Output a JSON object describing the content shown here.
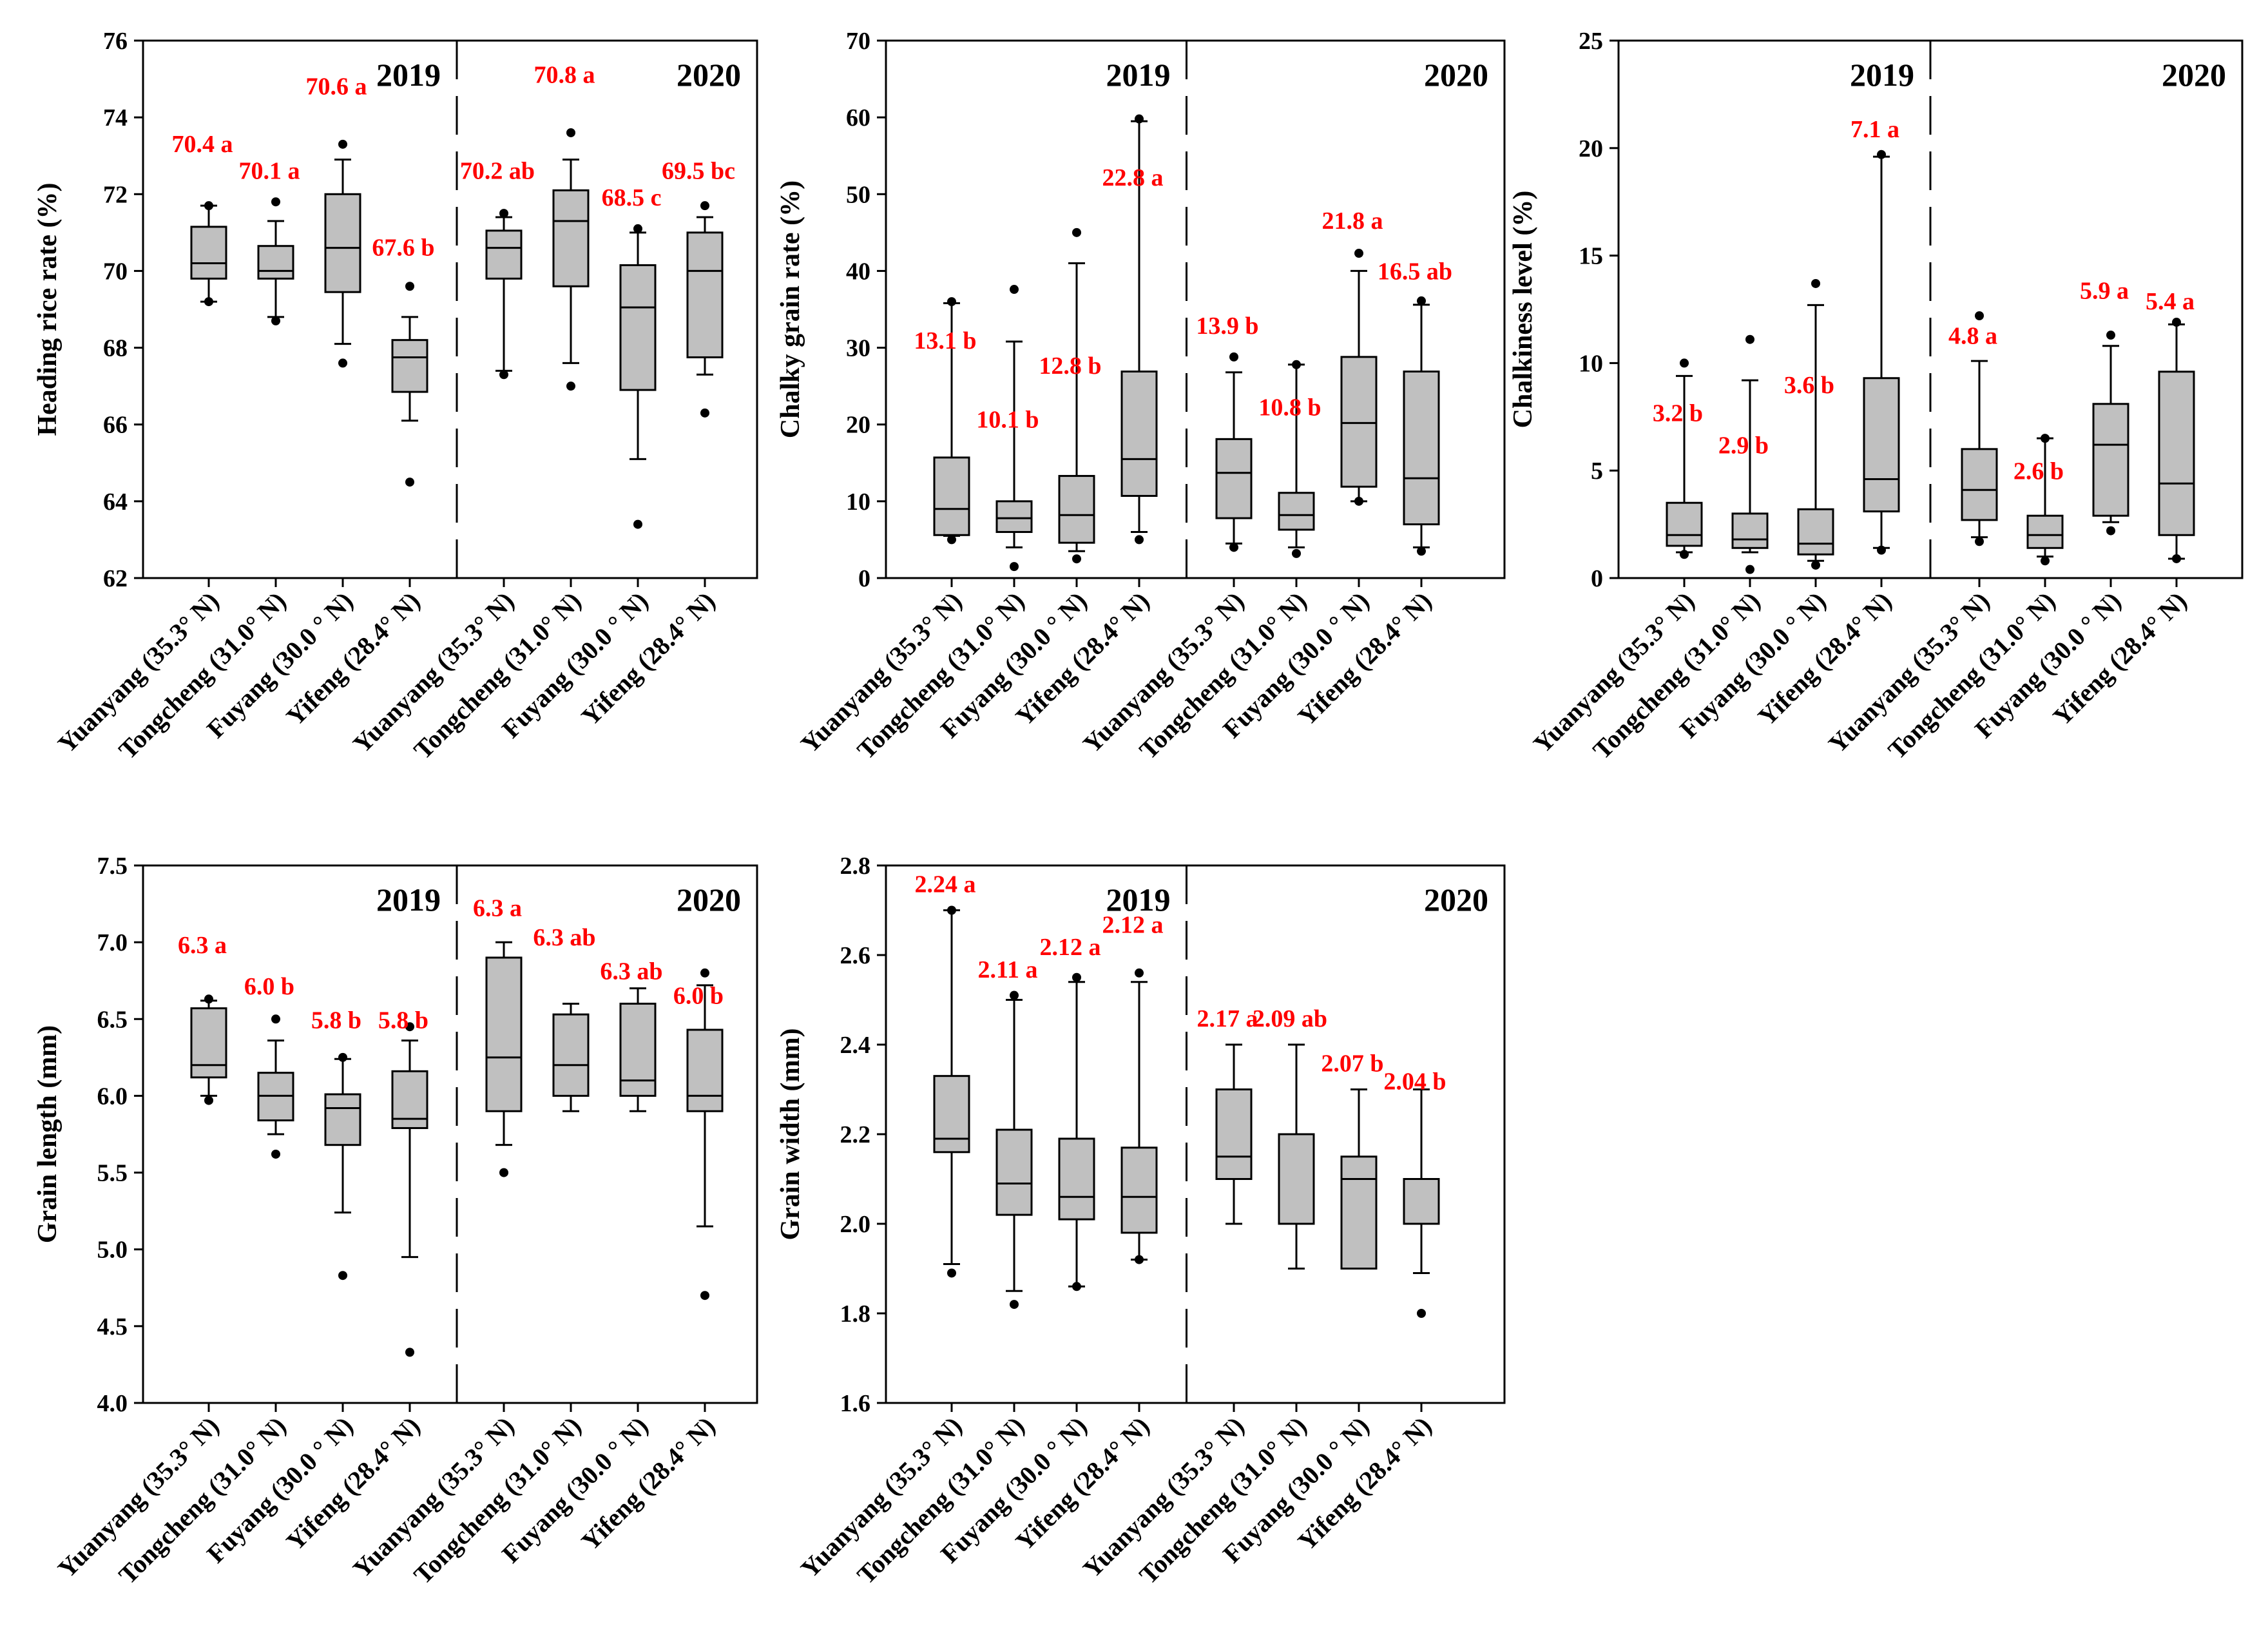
{
  "chart_data": [
    {
      "type": "box",
      "ylabel": "Heading rice rate (%)",
      "ylim": [
        62,
        76
      ],
      "yticks": [
        62,
        64,
        66,
        68,
        70,
        72,
        74,
        76
      ],
      "year_labels": [
        "2019",
        "2020"
      ],
      "categories": [
        "Yuanyang (35.3° N)",
        "Tongcheng (31.0° N)",
        "Fuyang (30.0 ° N)",
        "Yifeng (28.4° N)",
        "Yuanyang (35.3° N)",
        "Tongcheng (31.0° N)",
        "Fuyang (30.0 ° N)",
        "Yifeng (28.4° N)"
      ],
      "boxes": [
        {
          "wlo": 69.2,
          "q1": 69.8,
          "med": 70.2,
          "q3": 71.15,
          "whi": 71.7,
          "outliers": [
            69.2,
            71.7
          ],
          "label": "70.4 a",
          "label_y": 73.1
        },
        {
          "wlo": 68.8,
          "q1": 69.8,
          "med": 70.0,
          "q3": 70.65,
          "whi": 71.3,
          "outliers": [
            68.7,
            71.8
          ],
          "label": "70.1 a",
          "label_y": 72.4
        },
        {
          "wlo": 68.1,
          "q1": 69.45,
          "med": 70.6,
          "q3": 72.0,
          "whi": 72.9,
          "outliers": [
            67.6,
            73.3
          ],
          "label": "70.6 a",
          "label_y": 74.6
        },
        {
          "wlo": 66.1,
          "q1": 66.85,
          "med": 67.75,
          "q3": 68.2,
          "whi": 68.8,
          "outliers": [
            64.5,
            69.6
          ],
          "label": "67.6 b",
          "label_y": 70.4
        },
        {
          "wlo": 67.4,
          "q1": 69.8,
          "med": 70.6,
          "q3": 71.05,
          "whi": 71.4,
          "outliers": [
            67.3,
            71.5
          ],
          "label": "70.2 ab",
          "label_y": 72.4
        },
        {
          "wlo": 67.6,
          "q1": 69.6,
          "med": 71.3,
          "q3": 72.1,
          "whi": 72.9,
          "outliers": [
            67.0,
            73.6
          ],
          "label": "70.8 a",
          "label_y": 74.9
        },
        {
          "wlo": 65.1,
          "q1": 66.9,
          "med": 69.05,
          "q3": 70.15,
          "whi": 71.0,
          "outliers": [
            63.4,
            71.1
          ],
          "label": "68.5 c",
          "label_y": 71.7
        },
        {
          "wlo": 67.3,
          "q1": 67.75,
          "med": 70.0,
          "q3": 71.0,
          "whi": 71.4,
          "outliers": [
            66.3,
            71.7
          ],
          "label": "69.5 bc",
          "label_y": 72.4
        }
      ]
    },
    {
      "type": "box",
      "ylabel": "Chalky grain rate (%)",
      "ylim": [
        0,
        70
      ],
      "yticks": [
        0,
        10,
        20,
        30,
        40,
        50,
        60,
        70
      ],
      "year_labels": [
        "2019",
        "2020"
      ],
      "categories": [
        "Yuanyang (35.3° N)",
        "Tongcheng (31.0° N)",
        "Fuyang (30.0 ° N)",
        "Yifeng (28.4° N)",
        "Yuanyang (35.3° N)",
        "Tongcheng (31.0° N)",
        "Fuyang (30.0 ° N)",
        "Yifeng (28.4° N)"
      ],
      "boxes": [
        {
          "wlo": 5.5,
          "q1": 5.6,
          "med": 9.0,
          "q3": 15.7,
          "whi": 35.8,
          "outliers": [
            5.0,
            36.0
          ],
          "label": "13.1 b",
          "label_y": 29.9
        },
        {
          "wlo": 4.0,
          "q1": 6.0,
          "med": 7.8,
          "q3": 10.0,
          "whi": 30.8,
          "outliers": [
            1.5,
            37.6
          ],
          "label": "10.1 b",
          "label_y": 19.6
        },
        {
          "wlo": 3.5,
          "q1": 4.6,
          "med": 8.2,
          "q3": 13.3,
          "whi": 41.0,
          "outliers": [
            2.5,
            45.0
          ],
          "label": "12.8 b",
          "label_y": 26.6
        },
        {
          "wlo": 6.0,
          "q1": 10.7,
          "med": 15.5,
          "q3": 26.9,
          "whi": 59.5,
          "outliers": [
            5.0,
            59.8
          ],
          "label": "22.8 a",
          "label_y": 51.1
        },
        {
          "wlo": 4.5,
          "q1": 7.8,
          "med": 13.7,
          "q3": 18.1,
          "whi": 26.8,
          "outliers": [
            4.0,
            28.8
          ],
          "label": "13.9 b",
          "label_y": 31.8
        },
        {
          "wlo": 4.0,
          "q1": 6.3,
          "med": 8.2,
          "q3": 11.1,
          "whi": 27.8,
          "outliers": [
            3.2,
            27.8
          ],
          "label": "10.8 b",
          "label_y": 21.2
        },
        {
          "wlo": 10.0,
          "q1": 11.9,
          "med": 20.2,
          "q3": 28.8,
          "whi": 40.0,
          "outliers": [
            10.0,
            42.3
          ],
          "label": "21.8 a",
          "label_y": 45.5
        },
        {
          "wlo": 4.0,
          "q1": 7.0,
          "med": 13.0,
          "q3": 26.9,
          "whi": 35.6,
          "outliers": [
            3.5,
            36.1
          ],
          "label": "16.5 ab",
          "label_y": 38.9
        }
      ]
    },
    {
      "type": "box",
      "ylabel": "Chalkiness level (%)",
      "ylim": [
        0,
        25
      ],
      "yticks": [
        0,
        5,
        10,
        15,
        20,
        25
      ],
      "year_labels": [
        "2019",
        "2020"
      ],
      "categories": [
        "Yuanyang (35.3° N)",
        "Tongcheng (31.0° N)",
        "Fuyang (30.0 ° N)",
        "Yifeng (28.4° N)",
        "Yuanyang (35.3° N)",
        "Tongcheng (31.0° N)",
        "Fuyang (30.0 ° N)",
        "Yifeng (28.4° N)"
      ],
      "boxes": [
        {
          "wlo": 1.2,
          "q1": 1.5,
          "med": 2.0,
          "q3": 3.5,
          "whi": 9.4,
          "outliers": [
            1.1,
            10.0
          ],
          "label": "3.2 b",
          "label_y": 7.3
        },
        {
          "wlo": 1.2,
          "q1": 1.4,
          "med": 1.8,
          "q3": 3.0,
          "whi": 9.2,
          "outliers": [
            0.4,
            11.1
          ],
          "label": "2.9 b",
          "label_y": 5.8
        },
        {
          "wlo": 0.8,
          "q1": 1.1,
          "med": 1.6,
          "q3": 3.2,
          "whi": 12.7,
          "outliers": [
            0.6,
            13.7
          ],
          "label": "3.6 b",
          "label_y": 8.6
        },
        {
          "wlo": 1.4,
          "q1": 3.1,
          "med": 4.6,
          "q3": 9.3,
          "whi": 19.6,
          "outliers": [
            1.3,
            19.7
          ],
          "label": "7.1 a",
          "label_y": 20.5
        },
        {
          "wlo": 1.9,
          "q1": 2.7,
          "med": 4.1,
          "q3": 6.0,
          "whi": 10.1,
          "outliers": [
            1.7,
            12.2
          ],
          "label": "4.8 a",
          "label_y": 10.9
        },
        {
          "wlo": 1.0,
          "q1": 1.4,
          "med": 2.0,
          "q3": 2.9,
          "whi": 6.5,
          "outliers": [
            0.8,
            6.5
          ],
          "label": "2.6 b",
          "label_y": 4.6
        },
        {
          "wlo": 2.6,
          "q1": 2.9,
          "med": 6.2,
          "q3": 8.1,
          "whi": 10.8,
          "outliers": [
            2.2,
            11.3
          ],
          "label": "5.9 a",
          "label_y": 13.0
        },
        {
          "wlo": 0.9,
          "q1": 2.0,
          "med": 4.4,
          "q3": 9.6,
          "whi": 11.8,
          "outliers": [
            0.9,
            11.9
          ],
          "label": "5.4 a",
          "label_y": 12.5
        }
      ]
    },
    {
      "type": "box",
      "ylabel": "Grain length (mm)",
      "ylim": [
        4.0,
        7.5
      ],
      "yticks": [
        4.0,
        4.5,
        5.0,
        5.5,
        6.0,
        6.5,
        7.0,
        7.5
      ],
      "tick_decimals": 1,
      "year_labels": [
        "2019",
        "2020"
      ],
      "categories": [
        "Yuanyang (35.3° N)",
        "Tongcheng (31.0° N)",
        "Fuyang (30.0 ° N)",
        "Yifeng (28.4° N)",
        "Yuanyang (35.3° N)",
        "Tongcheng (31.0° N)",
        "Fuyang (30.0 ° N)",
        "Yifeng (28.4° N)"
      ],
      "boxes": [
        {
          "wlo": 6.0,
          "q1": 6.12,
          "med": 6.2,
          "q3": 6.57,
          "whi": 6.62,
          "outliers": [
            5.97,
            6.63
          ],
          "label": "6.3 a",
          "label_y": 6.93
        },
        {
          "wlo": 5.75,
          "q1": 5.84,
          "med": 6.0,
          "q3": 6.15,
          "whi": 6.36,
          "outliers": [
            5.62,
            6.5
          ],
          "label": "6.0 b",
          "label_y": 6.66
        },
        {
          "wlo": 5.24,
          "q1": 5.68,
          "med": 5.92,
          "q3": 6.01,
          "whi": 6.24,
          "outliers": [
            4.83,
            6.25
          ],
          "label": "5.8 b",
          "label_y": 6.44
        },
        {
          "wlo": 4.95,
          "q1": 5.79,
          "med": 5.85,
          "q3": 6.16,
          "whi": 6.36,
          "outliers": [
            4.33,
            6.45
          ],
          "label": "5.8 b",
          "label_y": 6.44
        },
        {
          "wlo": 5.68,
          "q1": 5.9,
          "med": 6.25,
          "q3": 6.9,
          "whi": 7.0,
          "outliers": [
            5.5
          ],
          "label": "6.3 a",
          "label_y": 7.17
        },
        {
          "wlo": 5.9,
          "q1": 6.0,
          "med": 6.2,
          "q3": 6.53,
          "whi": 6.6,
          "outliers": [],
          "label": "6.3 ab",
          "label_y": 6.98
        },
        {
          "wlo": 5.9,
          "q1": 6.0,
          "med": 6.1,
          "q3": 6.6,
          "whi": 6.7,
          "outliers": [],
          "label": "6.3 ab",
          "label_y": 6.76
        },
        {
          "wlo": 5.15,
          "q1": 5.9,
          "med": 6.0,
          "q3": 6.43,
          "whi": 6.72,
          "outliers": [
            4.7,
            6.8
          ],
          "label": "6.0 b",
          "label_y": 6.6
        }
      ]
    },
    {
      "type": "box",
      "ylabel": "Grain width (mm)",
      "ylim": [
        1.6,
        2.8
      ],
      "yticks": [
        1.6,
        1.8,
        2.0,
        2.2,
        2.4,
        2.6,
        2.8
      ],
      "tick_decimals": 1,
      "year_labels": [
        "2019",
        "2020"
      ],
      "categories": [
        "Yuanyang (35.3° N)",
        "Tongcheng (31.0° N)",
        "Fuyang (30.0 ° N)",
        "Yifeng (28.4° N)",
        "Yuanyang (35.3° N)",
        "Tongcheng (31.0° N)",
        "Fuyang (30.0 ° N)",
        "Yifeng (28.4° N)"
      ],
      "boxes": [
        {
          "wlo": 1.91,
          "q1": 2.16,
          "med": 2.19,
          "q3": 2.33,
          "whi": 2.7,
          "outliers": [
            1.89,
            2.7
          ],
          "label": "2.24 a",
          "label_y": 2.74
        },
        {
          "wlo": 1.85,
          "q1": 2.02,
          "med": 2.09,
          "q3": 2.21,
          "whi": 2.5,
          "outliers": [
            1.82,
            2.51
          ],
          "label": "2.11 a",
          "label_y": 2.55
        },
        {
          "wlo": 1.86,
          "q1": 2.01,
          "med": 2.06,
          "q3": 2.19,
          "whi": 2.54,
          "outliers": [
            1.86,
            2.55
          ],
          "label": "2.12 a",
          "label_y": 2.6
        },
        {
          "wlo": 1.92,
          "q1": 1.98,
          "med": 2.06,
          "q3": 2.17,
          "whi": 2.54,
          "outliers": [
            1.92,
            2.56
          ],
          "label": "2.12 a",
          "label_y": 2.65
        },
        {
          "wlo": 2.0,
          "q1": 2.1,
          "med": 2.15,
          "q3": 2.3,
          "whi": 2.4,
          "outliers": [],
          "label": "2.17 a",
          "label_y": 2.44
        },
        {
          "wlo": 1.9,
          "q1": 2.0,
          "med": 2.0,
          "q3": 2.2,
          "whi": 2.4,
          "outliers": [],
          "label": "2.09 ab",
          "label_y": 2.44
        },
        {
          "wlo": 1.9,
          "q1": 1.9,
          "med": 2.1,
          "q3": 2.15,
          "whi": 2.3,
          "outliers": [],
          "label": "2.07 b",
          "label_y": 2.34
        },
        {
          "wlo": 1.89,
          "q1": 2.0,
          "med": 2.0,
          "q3": 2.1,
          "whi": 2.3,
          "outliers": [
            1.8
          ],
          "label": "2.04 b",
          "label_y": 2.3
        }
      ]
    }
  ]
}
